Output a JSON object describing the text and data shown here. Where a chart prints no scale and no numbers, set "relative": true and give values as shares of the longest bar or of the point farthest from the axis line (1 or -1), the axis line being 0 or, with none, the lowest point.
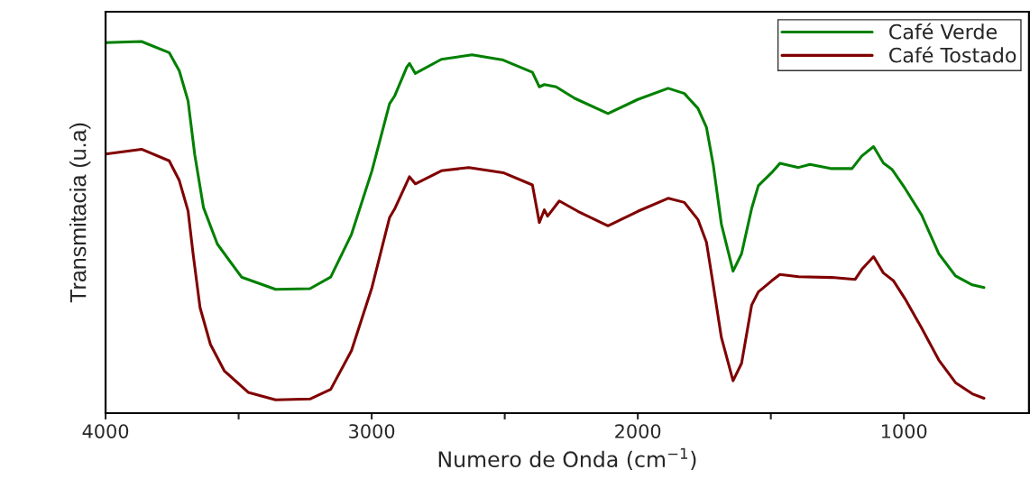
{
  "chart_data": {
    "type": "line",
    "xlabel": "Numero de Onda (cm$^{−1}$)",
    "ylabel": "Transmitacia (u.a)",
    "relative": true,
    "xlim": [
      4000,
      530
    ],
    "xticks": [
      4000,
      {
        "value": 3500,
        "label": null
      },
      3000,
      {
        "value": 2500,
        "label": null
      },
      2000,
      {
        "value": 1500,
        "label": null
      },
      1000
    ],
    "legend": "top right",
    "grid": false,
    "series": [
      {
        "name": "Café Verde",
        "color": "#008000",
        "x": [
          4000,
          3865,
          3761,
          3723,
          3690,
          3665,
          3632,
          3580,
          3489,
          3361,
          3232,
          3154,
          3076,
          2999,
          2933,
          2914,
          2868,
          2858,
          2836,
          2738,
          2623,
          2506,
          2396,
          2370,
          2351,
          2307,
          2237,
          2112,
          2000,
          1886,
          1825,
          1774,
          1742,
          1716,
          1686,
          1642,
          1610,
          1572,
          1547,
          1497,
          1466,
          1396,
          1353,
          1271,
          1195,
          1158,
          1114,
          1077,
          1045,
          996,
          934,
          869,
          806,
          743,
          699
        ],
        "values": [
          0.997,
          1.0,
          0.97,
          0.921,
          0.84,
          0.696,
          0.553,
          0.455,
          0.366,
          0.333,
          0.335,
          0.366,
          0.481,
          0.652,
          0.832,
          0.853,
          0.931,
          0.941,
          0.914,
          0.952,
          0.964,
          0.95,
          0.917,
          0.878,
          0.884,
          0.878,
          0.847,
          0.806,
          0.844,
          0.874,
          0.86,
          0.82,
          0.769,
          0.666,
          0.509,
          0.382,
          0.429,
          0.551,
          0.612,
          0.647,
          0.672,
          0.661,
          0.669,
          0.658,
          0.658,
          0.692,
          0.717,
          0.673,
          0.656,
          0.605,
          0.534,
          0.429,
          0.369,
          0.345,
          0.338
        ]
      },
      {
        "name": "Café Tostado",
        "color": "#800000",
        "x": [
          4000,
          3865,
          3761,
          3723,
          3690,
          3671,
          3645,
          3606,
          3554,
          3464,
          3361,
          3232,
          3154,
          3076,
          2999,
          2933,
          2914,
          2858,
          2836,
          2738,
          2635,
          2506,
          2396,
          2370,
          2351,
          2339,
          2295,
          2225,
          2112,
          2000,
          1886,
          1825,
          1774,
          1742,
          1716,
          1686,
          1642,
          1610,
          1572,
          1547,
          1497,
          1466,
          1396,
          1271,
          1183,
          1158,
          1114,
          1077,
          1039,
          996,
          934,
          869,
          806,
          743,
          699
        ],
        "values": [
          0.697,
          0.71,
          0.679,
          0.626,
          0.544,
          0.428,
          0.284,
          0.185,
          0.114,
          0.056,
          0.036,
          0.038,
          0.064,
          0.168,
          0.338,
          0.526,
          0.549,
          0.636,
          0.617,
          0.652,
          0.661,
          0.647,
          0.614,
          0.513,
          0.547,
          0.53,
          0.571,
          0.543,
          0.504,
          0.543,
          0.578,
          0.567,
          0.521,
          0.46,
          0.343,
          0.204,
          0.087,
          0.134,
          0.291,
          0.326,
          0.356,
          0.373,
          0.367,
          0.365,
          0.36,
          0.387,
          0.421,
          0.377,
          0.356,
          0.308,
          0.23,
          0.143,
          0.082,
          0.052,
          0.04
        ]
      }
    ]
  }
}
